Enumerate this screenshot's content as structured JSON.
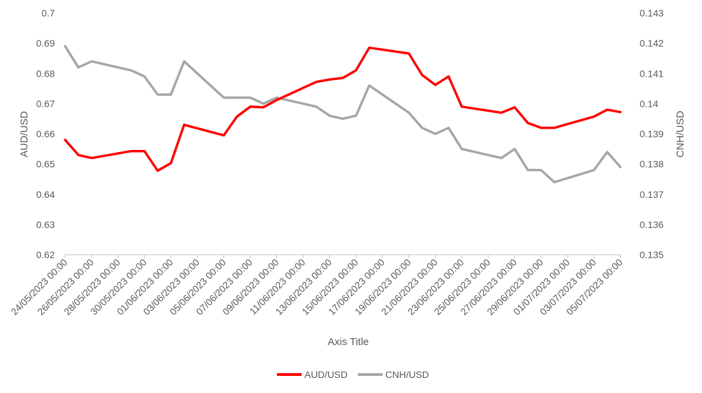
{
  "chart_data": {
    "type": "line",
    "title": "",
    "xlabel": "Axis Title",
    "ylabel": "AUD/USD",
    "y2label": "CNH/USD",
    "ylim": [
      0.62,
      0.7
    ],
    "y2lim": [
      0.135,
      0.143
    ],
    "y_ticks": [
      "0.62",
      "0.63",
      "0.64",
      "0.65",
      "0.66",
      "0.67",
      "0.68",
      "0.69",
      "0.7"
    ],
    "y2_ticks": [
      "0.135",
      "0.136",
      "0.137",
      "0.138",
      "0.139",
      "0.14",
      "0.141",
      "0.142",
      "0.143"
    ],
    "x_ticks": [
      "24/05/2023 00:00",
      "26/05/2023 00:00",
      "28/05/2023 00:00",
      "30/05/2023 00:00",
      "01/06/2023 00:00",
      "03/06/2023 00:00",
      "05/06/2023 00:00",
      "07/06/2023 00:00",
      "09/06/2023 00:00",
      "11/06/2023 00:00",
      "13/06/2023 00:00",
      "15/06/2023 00:00",
      "17/06/2023 00:00",
      "19/06/2023 00:00",
      "21/06/2023 00:00",
      "23/06/2023 00:00",
      "25/06/2023 00:00",
      "27/06/2023 00:00",
      "29/06/2023 00:00",
      "01/07/2023 00:00",
      "03/07/2023 00:00",
      "05/07/2023 00:00"
    ],
    "x_dates": [
      "2023-05-24",
      "2023-07-05"
    ],
    "grid": false,
    "legend_position": "bottom",
    "series": [
      {
        "name": "AUD/USD",
        "axis": "left",
        "color": "#ff0000",
        "points": [
          [
            "2023-05-24",
            0.658
          ],
          [
            "2023-05-25",
            0.653
          ],
          [
            "2023-05-26",
            0.652
          ],
          [
            "2023-05-29",
            0.6543
          ],
          [
            "2023-05-30",
            0.6543
          ],
          [
            "2023-05-31",
            0.6478
          ],
          [
            "2023-06-01",
            0.6503
          ],
          [
            "2023-06-02",
            0.663
          ],
          [
            "2023-06-05",
            0.6595
          ],
          [
            "2023-06-06",
            0.6657
          ],
          [
            "2023-06-07",
            0.669
          ],
          [
            "2023-06-08",
            0.6688
          ],
          [
            "2023-06-09",
            0.6712
          ],
          [
            "2023-06-12",
            0.6772
          ],
          [
            "2023-06-13",
            0.678
          ],
          [
            "2023-06-14",
            0.6785
          ],
          [
            "2023-06-15",
            0.681
          ],
          [
            "2023-06-16",
            0.6885
          ],
          [
            "2023-06-19",
            0.6866
          ],
          [
            "2023-06-20",
            0.6795
          ],
          [
            "2023-06-21",
            0.6762
          ],
          [
            "2023-06-22",
            0.679
          ],
          [
            "2023-06-23",
            0.669
          ],
          [
            "2023-06-26",
            0.667
          ],
          [
            "2023-06-27",
            0.6688
          ],
          [
            "2023-06-28",
            0.6636
          ],
          [
            "2023-06-29",
            0.662
          ],
          [
            "2023-06-30",
            0.662
          ],
          [
            "2023-07-03",
            0.6657
          ],
          [
            "2023-07-04",
            0.668
          ],
          [
            "2023-07-05",
            0.6672
          ]
        ]
      },
      {
        "name": "CNH/USD",
        "axis": "right",
        "color": "#a6a6a6",
        "points": [
          [
            "2023-05-24",
            0.1419
          ],
          [
            "2023-05-25",
            0.1412
          ],
          [
            "2023-05-26",
            0.1414
          ],
          [
            "2023-05-29",
            0.1411
          ],
          [
            "2023-05-30",
            0.1409
          ],
          [
            "2023-05-31",
            0.1403
          ],
          [
            "2023-06-01",
            0.1403
          ],
          [
            "2023-06-02",
            0.1414
          ],
          [
            "2023-06-05",
            0.1402
          ],
          [
            "2023-06-06",
            0.1402
          ],
          [
            "2023-06-07",
            0.1402
          ],
          [
            "2023-06-08",
            0.14
          ],
          [
            "2023-06-09",
            0.1402
          ],
          [
            "2023-06-12",
            0.1399
          ],
          [
            "2023-06-13",
            0.1396
          ],
          [
            "2023-06-14",
            0.1395
          ],
          [
            "2023-06-15",
            0.1396
          ],
          [
            "2023-06-16",
            0.1406
          ],
          [
            "2023-06-19",
            0.1397
          ],
          [
            "2023-06-20",
            0.1392
          ],
          [
            "2023-06-21",
            0.139
          ],
          [
            "2023-06-22",
            0.1392
          ],
          [
            "2023-06-23",
            0.1385
          ],
          [
            "2023-06-26",
            0.1382
          ],
          [
            "2023-06-27",
            0.1385
          ],
          [
            "2023-06-28",
            0.1378
          ],
          [
            "2023-06-29",
            0.1378
          ],
          [
            "2023-06-30",
            0.1374
          ],
          [
            "2023-07-03",
            0.1378
          ],
          [
            "2023-07-04",
            0.1384
          ],
          [
            "2023-07-05",
            0.1379
          ]
        ]
      }
    ]
  }
}
